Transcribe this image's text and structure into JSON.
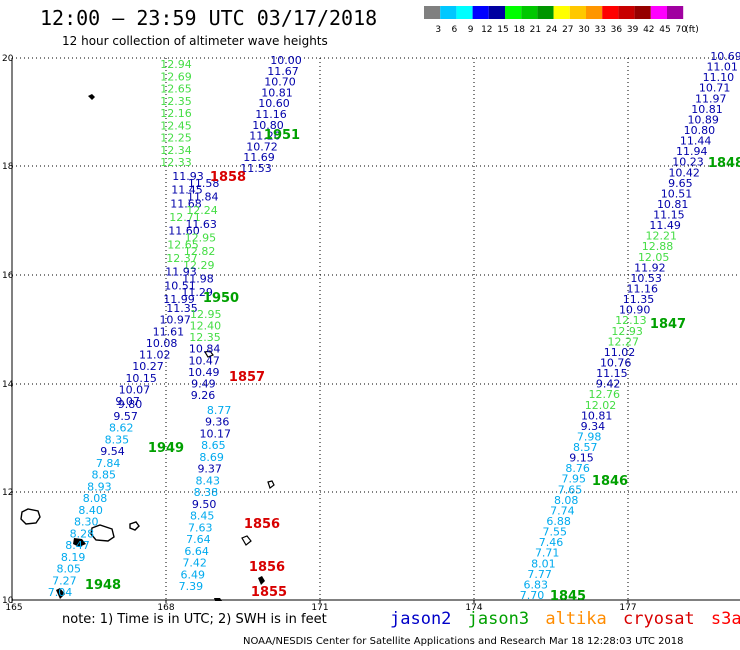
{
  "header": {
    "title": "12:00 – 23:59 UTC 03/17/2018",
    "subtitle": "12 hour collection of altimeter wave heights"
  },
  "legend": {
    "labels": [
      "3",
      "6",
      "9",
      "12",
      "15",
      "18",
      "21",
      "24",
      "27",
      "30",
      "33",
      "36",
      "39",
      "42",
      "45",
      "70",
      "(ft)"
    ],
    "colors": [
      "#808080",
      "#00c8ff",
      "#00ffff",
      "#0000ff",
      "#0000a0",
      "#00ff00",
      "#00c800",
      "#009600",
      "#ffff00",
      "#ffc800",
      "#ff9600",
      "#ff0000",
      "#c80000",
      "#960000",
      "#ff00ff",
      "#a000a0"
    ]
  },
  "axes": {
    "x_ticks": [
      "165",
      "168",
      "171",
      "174",
      "177"
    ],
    "y_ticks": [
      "20",
      "18",
      "16",
      "14",
      "12",
      "10"
    ]
  },
  "colors": {
    "jason2": "#0000c8",
    "jason3": "#00a000",
    "altika": "#ff8c00",
    "cryosat": "#d80000",
    "s3a": "#ff0000",
    "v_light_green": "#44dd44",
    "v_navy": "#0000aa",
    "v_cyan": "#00aaee"
  },
  "tracks": [
    {
      "name": "track-A",
      "points": [
        {
          "v": "10.00",
          "c": "n"
        },
        {
          "v": "11.67",
          "c": "n"
        },
        {
          "v": "10.70",
          "c": "n"
        },
        {
          "v": "10.81",
          "c": "n"
        },
        {
          "v": "10.60",
          "c": "n"
        },
        {
          "v": "11.16",
          "c": "n"
        },
        {
          "v": "10.80",
          "c": "n"
        },
        {
          "v": "11.20",
          "c": "n"
        },
        {
          "v": "10.72",
          "c": "n"
        },
        {
          "v": "11.69",
          "c": "n"
        },
        {
          "v": "11.53",
          "c": "n"
        }
      ]
    },
    {
      "name": "track-B",
      "points": [
        {
          "v": "12.94",
          "c": "g"
        },
        {
          "v": "12.69",
          "c": "g"
        },
        {
          "v": "12.65",
          "c": "g"
        },
        {
          "v": "12.35",
          "c": "g"
        },
        {
          "v": "12.16",
          "c": "g"
        },
        {
          "v": "12.45",
          "c": "g"
        },
        {
          "v": "12.25",
          "c": "g"
        },
        {
          "v": "12.34",
          "c": "g"
        },
        {
          "v": "12.33",
          "c": "g"
        }
      ]
    },
    {
      "name": "track-C",
      "points": [
        {
          "v": "11.93",
          "c": "n"
        },
        {
          "v": "11.58",
          "c": "n"
        },
        {
          "v": "11.45",
          "c": "n"
        },
        {
          "v": "11.84",
          "c": "n"
        },
        {
          "v": "11.68",
          "c": "n"
        },
        {
          "v": "12.24",
          "c": "g"
        },
        {
          "v": "12.71",
          "c": "g"
        },
        {
          "v": "11.63",
          "c": "n"
        },
        {
          "v": "11.60",
          "c": "n"
        },
        {
          "v": "12.95",
          "c": "g"
        },
        {
          "v": "12.65",
          "c": "g"
        },
        {
          "v": "12.82",
          "c": "g"
        },
        {
          "v": "12.37",
          "c": "g"
        },
        {
          "v": "12.29",
          "c": "g"
        },
        {
          "v": "11.93",
          "c": "n"
        },
        {
          "v": "11.98",
          "c": "n"
        },
        {
          "v": "10.51",
          "c": "n"
        },
        {
          "v": "11.29",
          "c": "n"
        },
        {
          "v": "11.99",
          "c": "n"
        }
      ]
    },
    {
      "name": "track-D",
      "points": [
        {
          "v": "11.35",
          "c": "n"
        },
        {
          "v": "12.95",
          "c": "g"
        },
        {
          "v": "10.97",
          "c": "n"
        },
        {
          "v": "12.40",
          "c": "g"
        },
        {
          "v": "11.61",
          "c": "n"
        },
        {
          "v": "12.35",
          "c": "g"
        },
        {
          "v": "10.08",
          "c": "n"
        },
        {
          "v": "10.84",
          "c": "n"
        },
        {
          "v": "11.02",
          "c": "n"
        },
        {
          "v": "10.47",
          "c": "n"
        },
        {
          "v": "10.27",
          "c": "n"
        },
        {
          "v": "10.49",
          "c": "n"
        },
        {
          "v": "10.15",
          "c": "n"
        },
        {
          "v": "9.49",
          "c": "n"
        },
        {
          "v": "10.07",
          "c": "n"
        },
        {
          "v": "9.26",
          "c": "n"
        },
        {
          "v": "9.07",
          "c": "n"
        }
      ]
    },
    {
      "name": "track-E",
      "points": [
        {
          "v": "9.80",
          "c": "n"
        },
        {
          "v": "8.77",
          "c": "c"
        },
        {
          "v": "9.57",
          "c": "n"
        },
        {
          "v": "9.36",
          "c": "n"
        },
        {
          "v": "8.62",
          "c": "c"
        },
        {
          "v": "10.17",
          "c": "n"
        },
        {
          "v": "8.35",
          "c": "c"
        },
        {
          "v": "8.65",
          "c": "c"
        },
        {
          "v": "9.54",
          "c": "n"
        },
        {
          "v": "8.69",
          "c": "c"
        },
        {
          "v": "7.84",
          "c": "c"
        },
        {
          "v": "9.37",
          "c": "n"
        },
        {
          "v": "8.85",
          "c": "c"
        },
        {
          "v": "8.43",
          "c": "c"
        },
        {
          "v": "8.93",
          "c": "c"
        },
        {
          "v": "8.38",
          "c": "c"
        },
        {
          "v": "8.08",
          "c": "c"
        },
        {
          "v": "9.50",
          "c": "n"
        },
        {
          "v": "8.40",
          "c": "c"
        },
        {
          "v": "8.45",
          "c": "c"
        },
        {
          "v": "8.30",
          "c": "c"
        },
        {
          "v": "7.63",
          "c": "c"
        },
        {
          "v": "8.28",
          "c": "c"
        },
        {
          "v": "7.64",
          "c": "c"
        },
        {
          "v": "8.47",
          "c": "c"
        },
        {
          "v": "6.64",
          "c": "c"
        },
        {
          "v": "8.19",
          "c": "c"
        },
        {
          "v": "7.42",
          "c": "c"
        },
        {
          "v": "8.05",
          "c": "c"
        },
        {
          "v": "6.49",
          "c": "c"
        },
        {
          "v": "7.27",
          "c": "c"
        },
        {
          "v": "7.39",
          "c": "c"
        },
        {
          "v": "7.04",
          "c": "c"
        }
      ]
    },
    {
      "name": "track-F",
      "points": [
        {
          "v": "10.69",
          "c": "n"
        },
        {
          "v": "11.01",
          "c": "n"
        },
        {
          "v": "11.10",
          "c": "n"
        },
        {
          "v": "10.71",
          "c": "n"
        },
        {
          "v": "11.97",
          "c": "n"
        },
        {
          "v": "10.81",
          "c": "n"
        },
        {
          "v": "10.89",
          "c": "n"
        },
        {
          "v": "10.80",
          "c": "n"
        },
        {
          "v": "11.44",
          "c": "n"
        },
        {
          "v": "11.94",
          "c": "n"
        },
        {
          "v": "10.23",
          "c": "n"
        },
        {
          "v": "10.42",
          "c": "n"
        },
        {
          "v": "9.65",
          "c": "n"
        },
        {
          "v": "10.51",
          "c": "n"
        },
        {
          "v": "10.81",
          "c": "n"
        },
        {
          "v": "11.15",
          "c": "n"
        },
        {
          "v": "11.49",
          "c": "n"
        },
        {
          "v": "12.21",
          "c": "g"
        },
        {
          "v": "12.88",
          "c": "g"
        },
        {
          "v": "12.05",
          "c": "g"
        },
        {
          "v": "11.92",
          "c": "n"
        },
        {
          "v": "10.53",
          "c": "n"
        },
        {
          "v": "11.16",
          "c": "n"
        },
        {
          "v": "11.35",
          "c": "n"
        },
        {
          "v": "10.90",
          "c": "n"
        },
        {
          "v": "12.13",
          "c": "g"
        },
        {
          "v": "12.93",
          "c": "g"
        },
        {
          "v": "12.27",
          "c": "g"
        },
        {
          "v": "11.02",
          "c": "n"
        },
        {
          "v": "10.76",
          "c": "n"
        },
        {
          "v": "11.15",
          "c": "n"
        },
        {
          "v": "9.42",
          "c": "n"
        },
        {
          "v": "12.76",
          "c": "g"
        },
        {
          "v": "12.02",
          "c": "g"
        },
        {
          "v": "10.81",
          "c": "n"
        },
        {
          "v": "9.34",
          "c": "n"
        },
        {
          "v": "7.98",
          "c": "c"
        },
        {
          "v": "8.57",
          "c": "c"
        },
        {
          "v": "9.15",
          "c": "n"
        },
        {
          "v": "8.76",
          "c": "c"
        },
        {
          "v": "7.95",
          "c": "c"
        },
        {
          "v": "7.65",
          "c": "c"
        },
        {
          "v": "8.08",
          "c": "c"
        },
        {
          "v": "7.74",
          "c": "c"
        },
        {
          "v": "6.88",
          "c": "c"
        },
        {
          "v": "7.55",
          "c": "c"
        },
        {
          "v": "7.46",
          "c": "c"
        },
        {
          "v": "7.71",
          "c": "c"
        },
        {
          "v": "8.01",
          "c": "c"
        },
        {
          "v": "7.77",
          "c": "c"
        },
        {
          "v": "6.83",
          "c": "c"
        },
        {
          "v": "7.70",
          "c": "c"
        }
      ]
    }
  ],
  "time_labels": [
    {
      "text": "1951",
      "sat": "jason3"
    },
    {
      "text": "1858",
      "sat": "cryosat"
    },
    {
      "text": "1950",
      "sat": "jason3"
    },
    {
      "text": "1857",
      "sat": "cryosat"
    },
    {
      "text": "1949",
      "sat": "jason3"
    },
    {
      "text": "1856",
      "sat": "cryosat"
    },
    {
      "text": "1856",
      "sat": "cryosat"
    },
    {
      "text": "1855",
      "sat": "cryosat"
    },
    {
      "text": "1948",
      "sat": "jason3"
    },
    {
      "text": "1848",
      "sat": "jason3"
    },
    {
      "text": "1847",
      "sat": "jason3"
    },
    {
      "text": "1846",
      "sat": "jason3"
    },
    {
      "text": "1845",
      "sat": "jason3"
    }
  ],
  "footer": {
    "note": "note:  1) Time is in UTC;  2) SWH is in feet",
    "satellites": [
      "jason2",
      "jason3",
      "altika",
      "cryosat",
      "s3a"
    ],
    "credit": "NOAA/NESDIS Center for Satellite Applications and Research    Mar 18 12:28:03 UTC 2018"
  }
}
